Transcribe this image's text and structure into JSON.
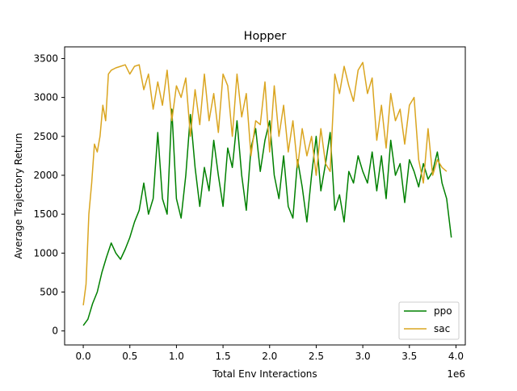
{
  "chart_data": {
    "type": "line",
    "title": "Hopper",
    "xlabel": "Total Env Interactions",
    "ylabel": "Average Trajectory Return",
    "x_offset_label": "1e6",
    "xlim": [
      -0.2,
      4.1
    ],
    "ylim": [
      -180,
      3650
    ],
    "x_scale": 1000000,
    "x_ticks": [
      0.0,
      0.5,
      1.0,
      1.5,
      2.0,
      2.5,
      3.0,
      3.5,
      4.0
    ],
    "x_tick_labels": [
      "0.0",
      "0.5",
      "1.0",
      "1.5",
      "2.0",
      "2.5",
      "3.0",
      "3.5",
      "4.0"
    ],
    "y_ticks": [
      0,
      500,
      1000,
      1500,
      2000,
      2500,
      3000,
      3500
    ],
    "y_tick_labels": [
      "0",
      "500",
      "1000",
      "1500",
      "2000",
      "2500",
      "3000",
      "3500"
    ],
    "grid": false,
    "legend_position": "lower right",
    "series": [
      {
        "name": "ppo",
        "color": "#008000",
        "x": [
          0.0,
          0.05,
          0.1,
          0.15,
          0.2,
          0.25,
          0.3,
          0.35,
          0.4,
          0.45,
          0.5,
          0.55,
          0.6,
          0.65,
          0.7,
          0.75,
          0.8,
          0.85,
          0.9,
          0.95,
          1.0,
          1.05,
          1.1,
          1.15,
          1.2,
          1.25,
          1.3,
          1.35,
          1.4,
          1.45,
          1.5,
          1.55,
          1.6,
          1.65,
          1.7,
          1.75,
          1.8,
          1.85,
          1.9,
          1.95,
          2.0,
          2.05,
          2.1,
          2.15,
          2.2,
          2.25,
          2.3,
          2.35,
          2.4,
          2.45,
          2.5,
          2.55,
          2.6,
          2.65,
          2.7,
          2.75,
          2.8,
          2.85,
          2.9,
          2.95,
          3.0,
          3.05,
          3.1,
          3.15,
          3.2,
          3.25,
          3.3,
          3.35,
          3.4,
          3.45,
          3.5,
          3.55,
          3.6,
          3.65,
          3.7,
          3.75,
          3.8,
          3.85,
          3.9,
          3.95
        ],
        "y": [
          70,
          150,
          350,
          500,
          750,
          950,
          1130,
          1000,
          920,
          1050,
          1200,
          1400,
          1550,
          1900,
          1500,
          1700,
          2550,
          1700,
          1500,
          2850,
          1700,
          1450,
          2000,
          2780,
          2100,
          1600,
          2100,
          1800,
          2450,
          2000,
          1600,
          2350,
          2100,
          2700,
          2000,
          1550,
          2350,
          2600,
          2050,
          2450,
          2700,
          2000,
          1700,
          2250,
          1600,
          1450,
          2200,
          1850,
          1400,
          2000,
          2500,
          1800,
          2150,
          2550,
          1550,
          1750,
          1400,
          2050,
          1900,
          2250,
          2050,
          1900,
          2300,
          1800,
          2250,
          1700,
          2450,
          2000,
          2150,
          1650,
          2200,
          2050,
          1850,
          2150,
          1950,
          2050,
          2300,
          1900,
          1700,
          1200
        ]
      },
      {
        "name": "sac",
        "color": "#DAA520",
        "x": [
          0.0,
          0.03,
          0.06,
          0.09,
          0.12,
          0.15,
          0.18,
          0.21,
          0.24,
          0.27,
          0.3,
          0.35,
          0.4,
          0.45,
          0.5,
          0.55,
          0.6,
          0.65,
          0.7,
          0.75,
          0.8,
          0.85,
          0.9,
          0.95,
          1.0,
          1.05,
          1.1,
          1.15,
          1.2,
          1.25,
          1.3,
          1.35,
          1.4,
          1.45,
          1.5,
          1.55,
          1.6,
          1.65,
          1.7,
          1.75,
          1.8,
          1.85,
          1.9,
          1.95,
          2.0,
          2.05,
          2.1,
          2.15,
          2.2,
          2.25,
          2.3,
          2.35,
          2.4,
          2.45,
          2.5,
          2.55,
          2.6,
          2.65,
          2.7,
          2.75,
          2.8,
          2.85,
          2.9,
          2.95,
          3.0,
          3.05,
          3.1,
          3.15,
          3.2,
          3.25,
          3.3,
          3.35,
          3.4,
          3.45,
          3.5,
          3.55,
          3.6,
          3.65,
          3.7,
          3.75,
          3.8,
          3.85,
          3.9
        ],
        "y": [
          330,
          600,
          1500,
          1900,
          2400,
          2300,
          2500,
          2900,
          2700,
          3300,
          3350,
          3380,
          3400,
          3420,
          3300,
          3400,
          3420,
          3100,
          3300,
          2850,
          3200,
          2900,
          3350,
          2700,
          3150,
          3000,
          3250,
          2500,
          3100,
          2650,
          3300,
          2700,
          3050,
          2550,
          3300,
          3150,
          2500,
          3300,
          2750,
          3050,
          2250,
          2700,
          2650,
          3200,
          2300,
          3150,
          2500,
          2900,
          2300,
          2700,
          2100,
          2600,
          2250,
          2500,
          2000,
          2600,
          2150,
          2050,
          3300,
          3050,
          3400,
          3150,
          2950,
          3350,
          3450,
          3050,
          3250,
          2450,
          2900,
          2350,
          3050,
          2700,
          2850,
          2400,
          2900,
          3000,
          2200,
          1900,
          2600,
          2000,
          2200,
          2100,
          2050
        ]
      }
    ]
  }
}
